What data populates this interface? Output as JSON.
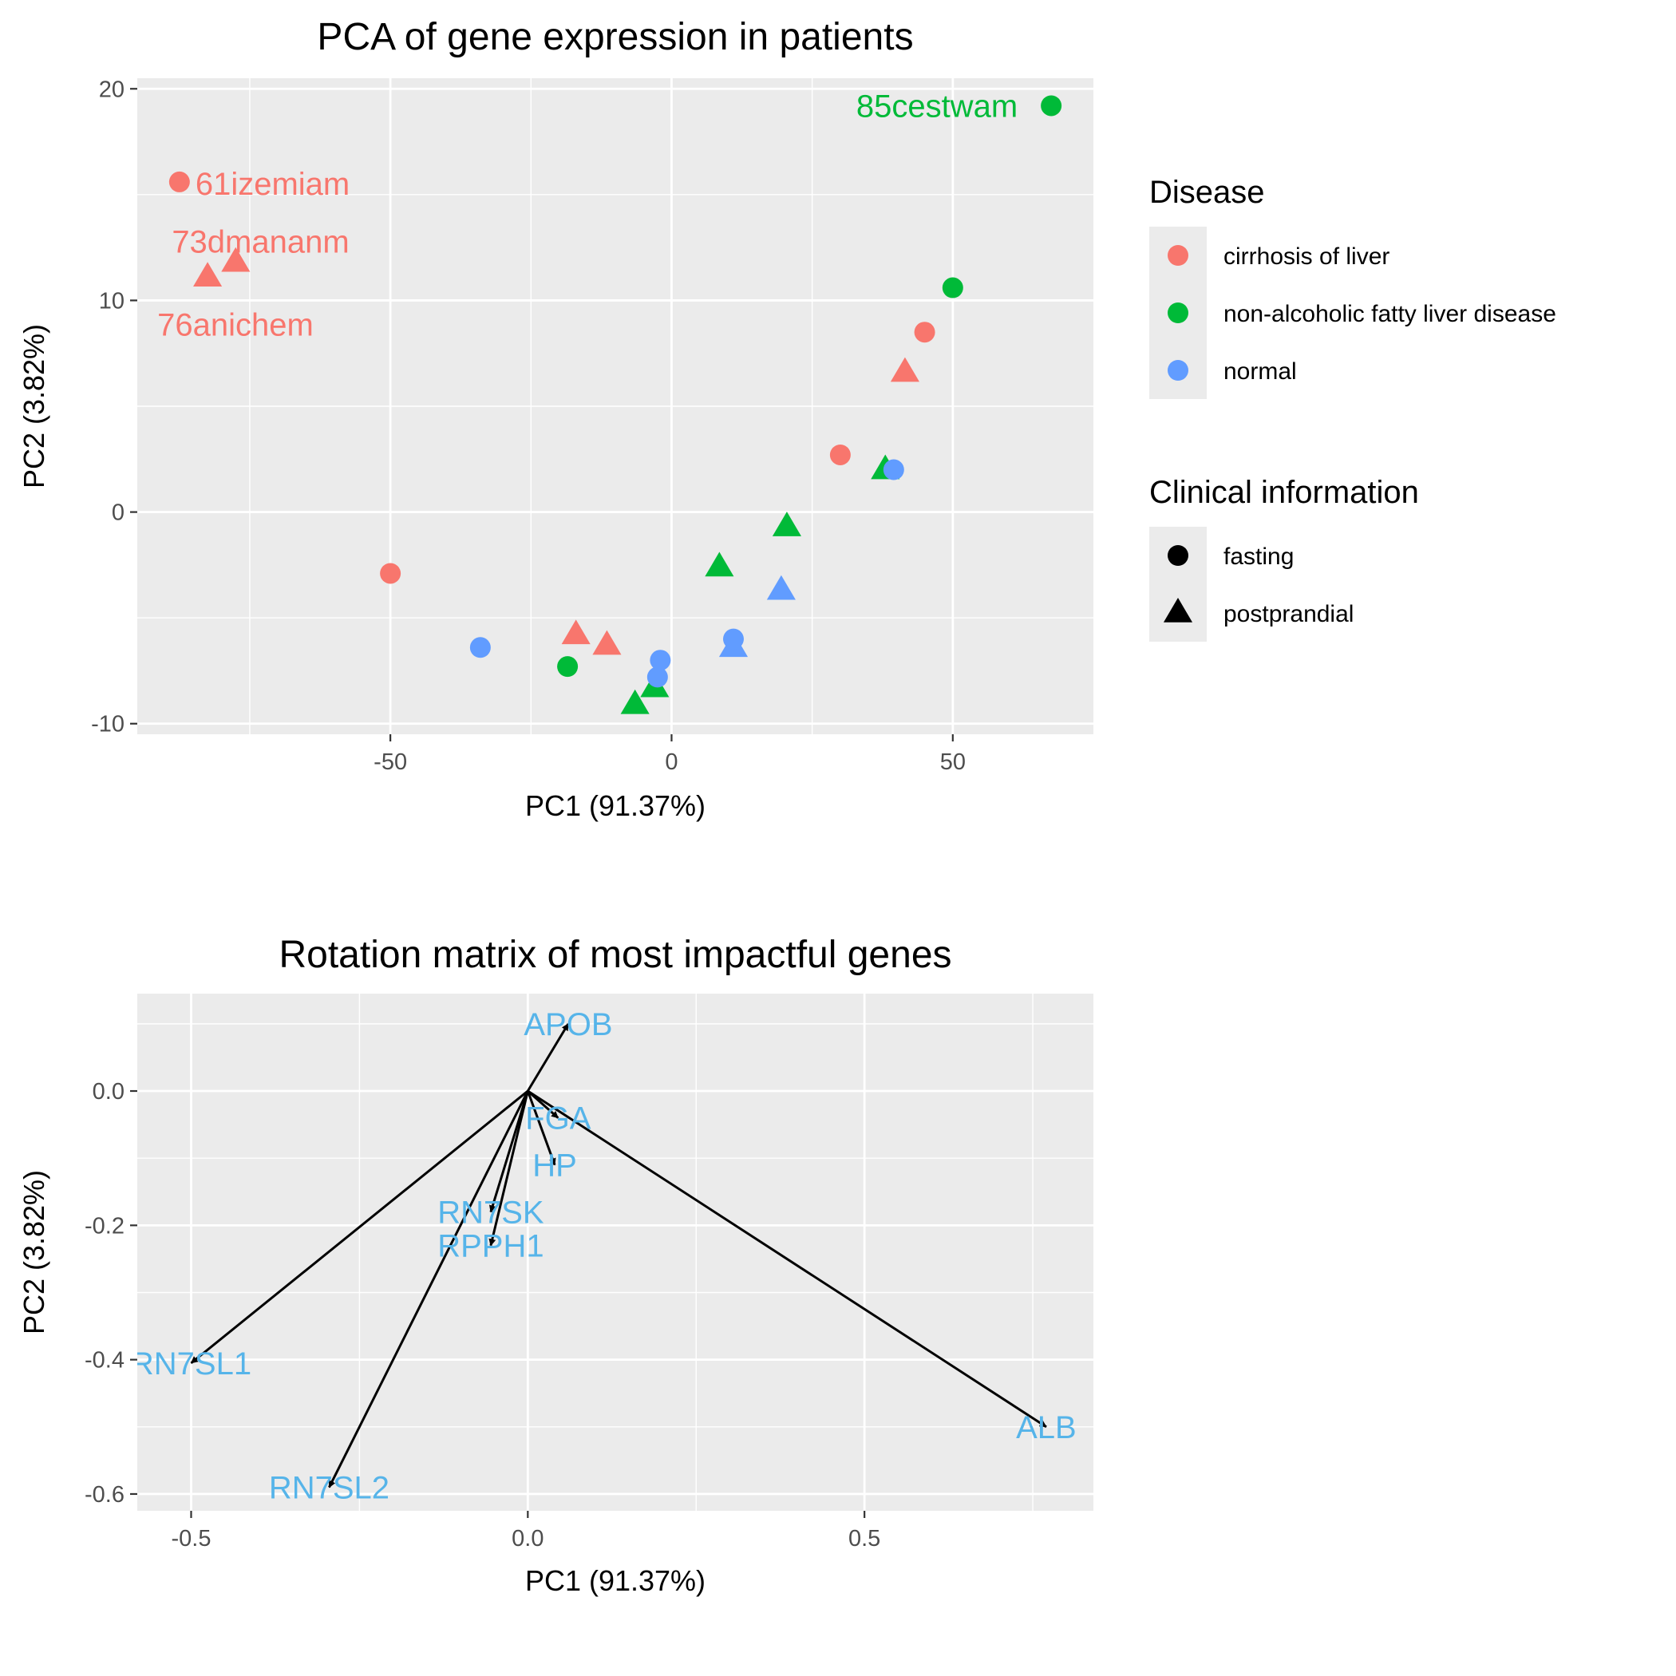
{
  "colors": {
    "cirrhosis of liver": "#F8766D",
    "non-alcoholic fatty liver disease": "#00BA38",
    "normal": "#619CFF",
    "panel_bg": "#EBEBEB",
    "grid": "#FFFFFF",
    "gene_label": "#56B4E9",
    "arrow": "#000000"
  },
  "legend": {
    "disease_title": "Disease",
    "disease_items": [
      "cirrhosis of liver",
      "non-alcoholic fatty liver disease",
      "normal"
    ],
    "clinical_title": "Clinical information",
    "clinical_items": [
      "fasting",
      "postprandial"
    ]
  },
  "chart_data": [
    {
      "type": "scatter",
      "title": "PCA of gene expression in patients",
      "xlabel": "PC1 (91.37%)",
      "ylabel": "PC2 (3.82%)",
      "xlim": [
        -95,
        75
      ],
      "ylim": [
        -10.5,
        20.5
      ],
      "xticks": [
        -50,
        0,
        50
      ],
      "yticks": [
        -10,
        0,
        10,
        20
      ],
      "grid": true,
      "legend_position": "right",
      "points": [
        {
          "x": -87.5,
          "y": 15.6,
          "disease": "cirrhosis of liver",
          "clinical": "fasting",
          "label": "61izemiam"
        },
        {
          "x": -82.5,
          "y": 11.1,
          "disease": "cirrhosis of liver",
          "clinical": "postprandial",
          "label": "76anichem"
        },
        {
          "x": -77.5,
          "y": 11.8,
          "disease": "cirrhosis of liver",
          "clinical": "postprandial",
          "label": "73dmananm"
        },
        {
          "x": -50.0,
          "y": -2.9,
          "disease": "cirrhosis of liver",
          "clinical": "fasting"
        },
        {
          "x": -34.0,
          "y": -6.4,
          "disease": "normal",
          "clinical": "fasting"
        },
        {
          "x": -18.5,
          "y": -7.3,
          "disease": "non-alcoholic fatty liver disease",
          "clinical": "fasting"
        },
        {
          "x": -17.0,
          "y": -5.8,
          "disease": "cirrhosis of liver",
          "clinical": "postprandial"
        },
        {
          "x": -11.5,
          "y": -6.3,
          "disease": "cirrhosis of liver",
          "clinical": "postprandial"
        },
        {
          "x": -6.5,
          "y": -9.1,
          "disease": "non-alcoholic fatty liver disease",
          "clinical": "postprandial"
        },
        {
          "x": -3.0,
          "y": -8.3,
          "disease": "non-alcoholic fatty liver disease",
          "clinical": "postprandial"
        },
        {
          "x": -2.5,
          "y": -7.8,
          "disease": "normal",
          "clinical": "fasting"
        },
        {
          "x": -2.0,
          "y": -7.0,
          "disease": "normal",
          "clinical": "fasting"
        },
        {
          "x": 8.5,
          "y": -2.6,
          "disease": "non-alcoholic fatty liver disease",
          "clinical": "postprandial"
        },
        {
          "x": 11.0,
          "y": -6.4,
          "disease": "normal",
          "clinical": "postprandial"
        },
        {
          "x": 11.0,
          "y": -6.0,
          "disease": "normal",
          "clinical": "fasting"
        },
        {
          "x": 19.5,
          "y": -3.7,
          "disease": "normal",
          "clinical": "postprandial"
        },
        {
          "x": 20.5,
          "y": -0.7,
          "disease": "non-alcoholic fatty liver disease",
          "clinical": "postprandial"
        },
        {
          "x": 30.0,
          "y": 2.7,
          "disease": "cirrhosis of liver",
          "clinical": "fasting"
        },
        {
          "x": 38.0,
          "y": 2.0,
          "disease": "non-alcoholic fatty liver disease",
          "clinical": "postprandial"
        },
        {
          "x": 39.5,
          "y": 2.0,
          "disease": "normal",
          "clinical": "fasting"
        },
        {
          "x": 41.5,
          "y": 6.6,
          "disease": "cirrhosis of liver",
          "clinical": "postprandial"
        },
        {
          "x": 45.0,
          "y": 8.5,
          "disease": "cirrhosis of liver",
          "clinical": "fasting"
        },
        {
          "x": 50.0,
          "y": 10.6,
          "disease": "non-alcoholic fatty liver disease",
          "clinical": "fasting"
        },
        {
          "x": 67.5,
          "y": 19.2,
          "disease": "non-alcoholic fatty liver disease",
          "clinical": "fasting",
          "label": "85cestwam"
        }
      ]
    },
    {
      "type": "vector",
      "title": "Rotation matrix of most impactful genes",
      "xlabel": "PC1 (91.37%)",
      "ylabel": "PC2 (3.82%)",
      "xlim": [
        -0.58,
        0.84
      ],
      "ylim": [
        -0.625,
        0.145
      ],
      "xticks": [
        -0.5,
        0.0,
        0.5
      ],
      "yticks": [
        0.0,
        -0.2,
        -0.4,
        -0.6
      ],
      "grid": true,
      "arrows": [
        {
          "gene": "APOB",
          "x": 0.06,
          "y": 0.1
        },
        {
          "gene": "FGA",
          "x": 0.045,
          "y": -0.04
        },
        {
          "gene": "HP",
          "x": 0.04,
          "y": -0.11
        },
        {
          "gene": "RN7SK",
          "x": -0.055,
          "y": -0.18
        },
        {
          "gene": "RPPH1",
          "x": -0.055,
          "y": -0.23
        },
        {
          "gene": "RN7SL1",
          "x": -0.5,
          "y": -0.405
        },
        {
          "gene": "RN7SL2",
          "x": -0.295,
          "y": -0.59
        },
        {
          "gene": "ALB",
          "x": 0.77,
          "y": -0.5
        }
      ]
    }
  ]
}
